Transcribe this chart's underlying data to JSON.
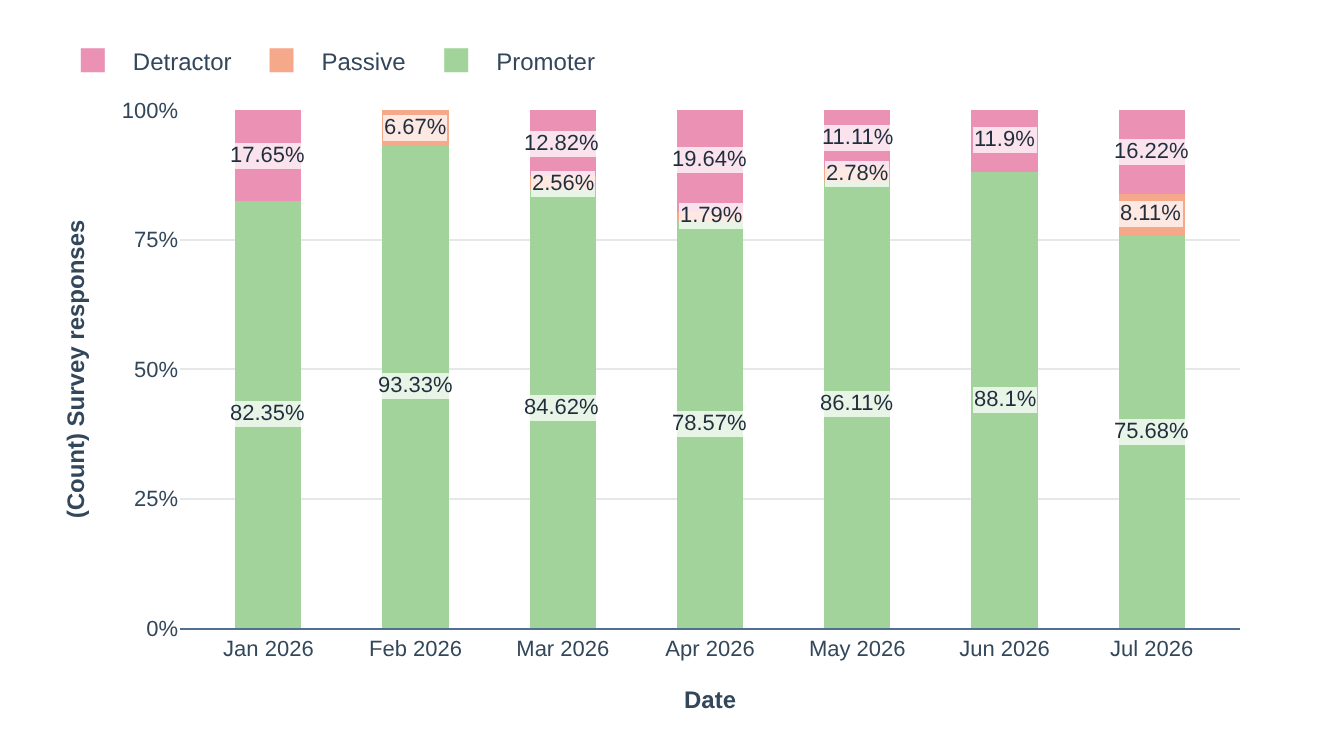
{
  "chart_data": {
    "type": "bar",
    "stacked": true,
    "xlabel": "Date",
    "ylabel": "(Count) Survey responses",
    "categories": [
      "Jan 2026",
      "Feb 2026",
      "Mar 2026",
      "Apr 2026",
      "May 2026",
      "Jun 2026",
      "Jul 2026"
    ],
    "series": [
      {
        "name": "Promoter",
        "color": "#a2d39b",
        "values": [
          82.35,
          93.33,
          84.62,
          78.57,
          86.11,
          88.1,
          75.68
        ],
        "value_labels": [
          "82.35%",
          "93.33%",
          "84.62%",
          "78.57%",
          "86.11%",
          "88.1%",
          "75.68%"
        ]
      },
      {
        "name": "Passive",
        "color": "#f6a98a",
        "values": [
          0,
          6.67,
          2.56,
          1.79,
          2.78,
          0,
          8.11
        ],
        "value_labels": [
          null,
          "6.67%",
          "2.56%",
          "1.79%",
          "2.78%",
          null,
          "8.11%"
        ]
      },
      {
        "name": "Detractor",
        "color": "#ea91b4",
        "values": [
          17.65,
          0,
          12.82,
          19.64,
          11.11,
          11.9,
          16.22
        ],
        "value_labels": [
          "17.65%",
          null,
          "12.82%",
          "19.64%",
          "11.11%",
          "11.9%",
          "16.22%"
        ]
      }
    ],
    "ylim": [
      0,
      100
    ],
    "yticks": [
      {
        "value": 0,
        "label": "0%"
      },
      {
        "value": 25,
        "label": "25%"
      },
      {
        "value": 50,
        "label": "50%"
      },
      {
        "value": 75,
        "label": "75%"
      },
      {
        "value": 100,
        "label": "100%"
      }
    ],
    "grid": "y",
    "legend": "top left"
  }
}
